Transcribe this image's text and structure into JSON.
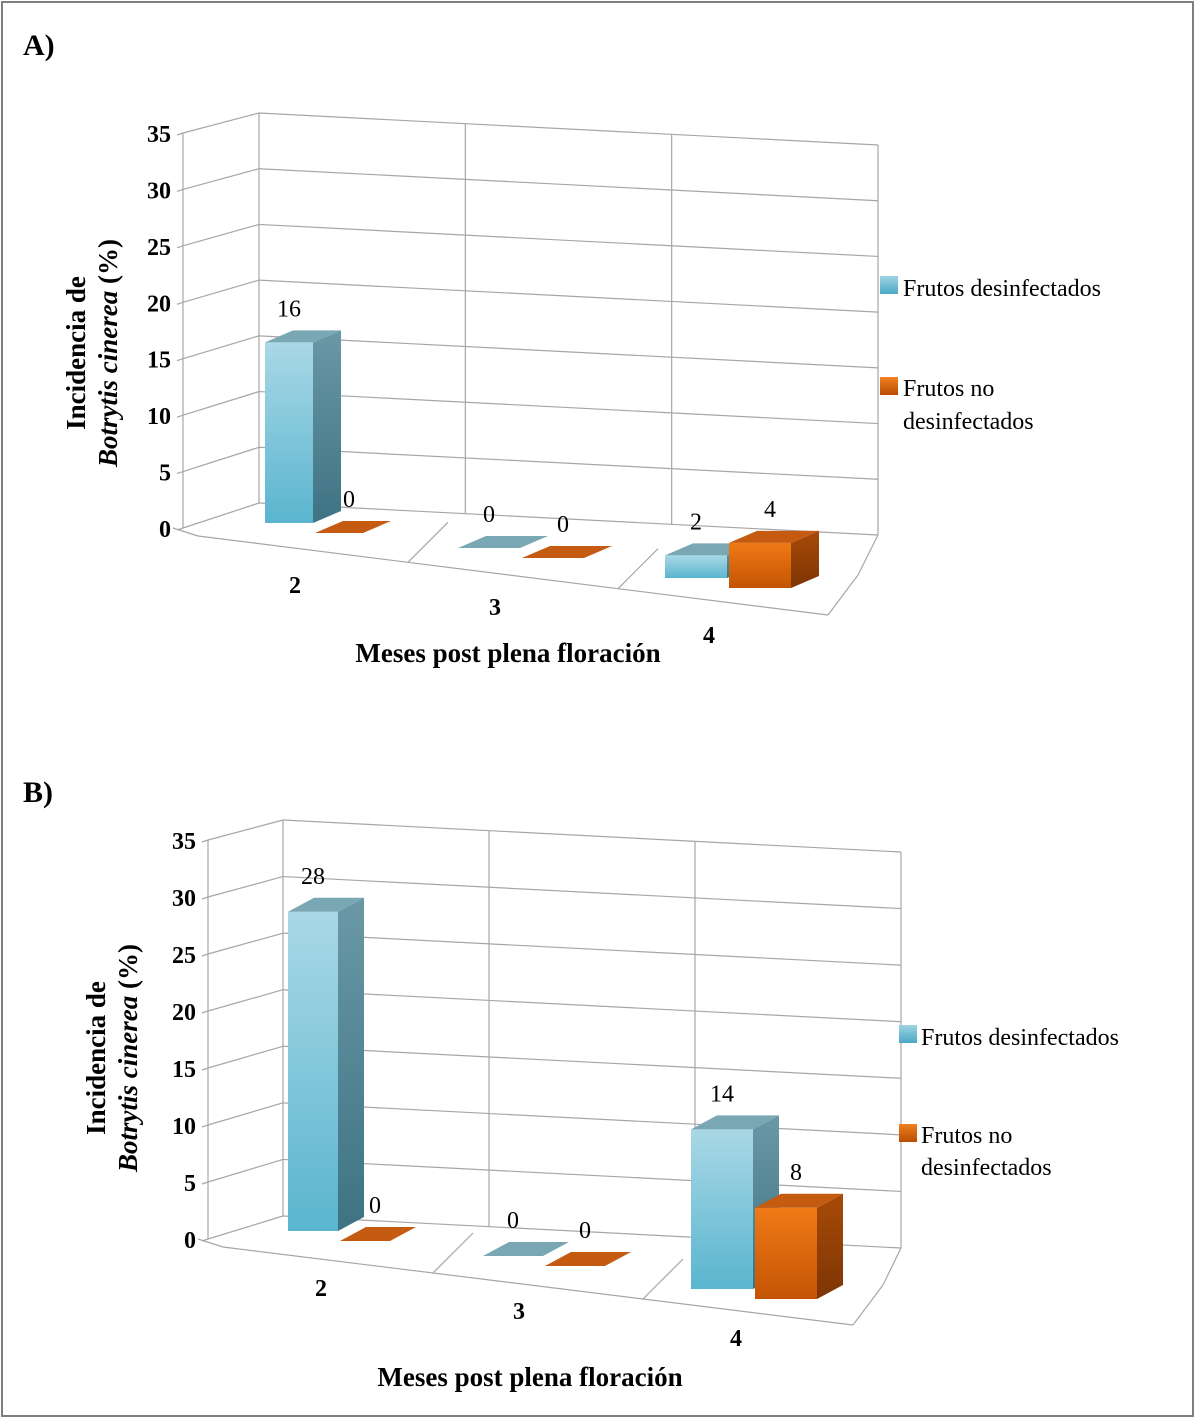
{
  "chart_data": [
    {
      "type": "bar",
      "panel_label": "A)",
      "categories": [
        "2",
        "3",
        "4"
      ],
      "series": [
        {
          "name": "Frutos desinfectados",
          "values": [
            16,
            0,
            2
          ],
          "color": "#7dc4da"
        },
        {
          "name": "Frutos no desinfectados",
          "values": [
            0,
            0,
            4
          ],
          "color": "#e36c0a"
        }
      ],
      "xlabel": "Meses post plena floración",
      "ylabel_lines": [
        "Incidencia de",
        "Botrytis cinerea (%)"
      ],
      "ylabel_italic": "Botrytis cinerea",
      "ylabel_suffix": " (%)",
      "y_ticks": [
        "0",
        "5",
        "10",
        "15",
        "20",
        "25",
        "30",
        "35"
      ],
      "ylim": [
        0,
        35
      ],
      "grid": true,
      "legend_position": "right",
      "legend_entries": [
        "Frutos desinfectados",
        "Frutos no",
        "desinfectados"
      ]
    },
    {
      "type": "bar",
      "panel_label": "B)",
      "categories": [
        "2",
        "3",
        "4"
      ],
      "series": [
        {
          "name": "Frutos desinfectados",
          "values": [
            28,
            0,
            14
          ],
          "color": "#7dc4da"
        },
        {
          "name": "Frutos no desinfectados",
          "values": [
            0,
            0,
            8
          ],
          "color": "#e36c0a"
        }
      ],
      "xlabel": "Meses post plena floración",
      "ylabel_lines": [
        "Incidencia de",
        "Botrytis cinerea (%)"
      ],
      "ylabel_italic": "Botrytis cinerea",
      "ylabel_suffix": " (%)",
      "y_ticks": [
        "0",
        "5",
        "10",
        "15",
        "20",
        "25",
        "30",
        "35"
      ],
      "ylim": [
        0,
        35
      ],
      "grid": true,
      "legend_position": "right",
      "legend_entries": [
        "Frutos desinfectados",
        "Frutos no",
        "desinfectados"
      ]
    }
  ]
}
